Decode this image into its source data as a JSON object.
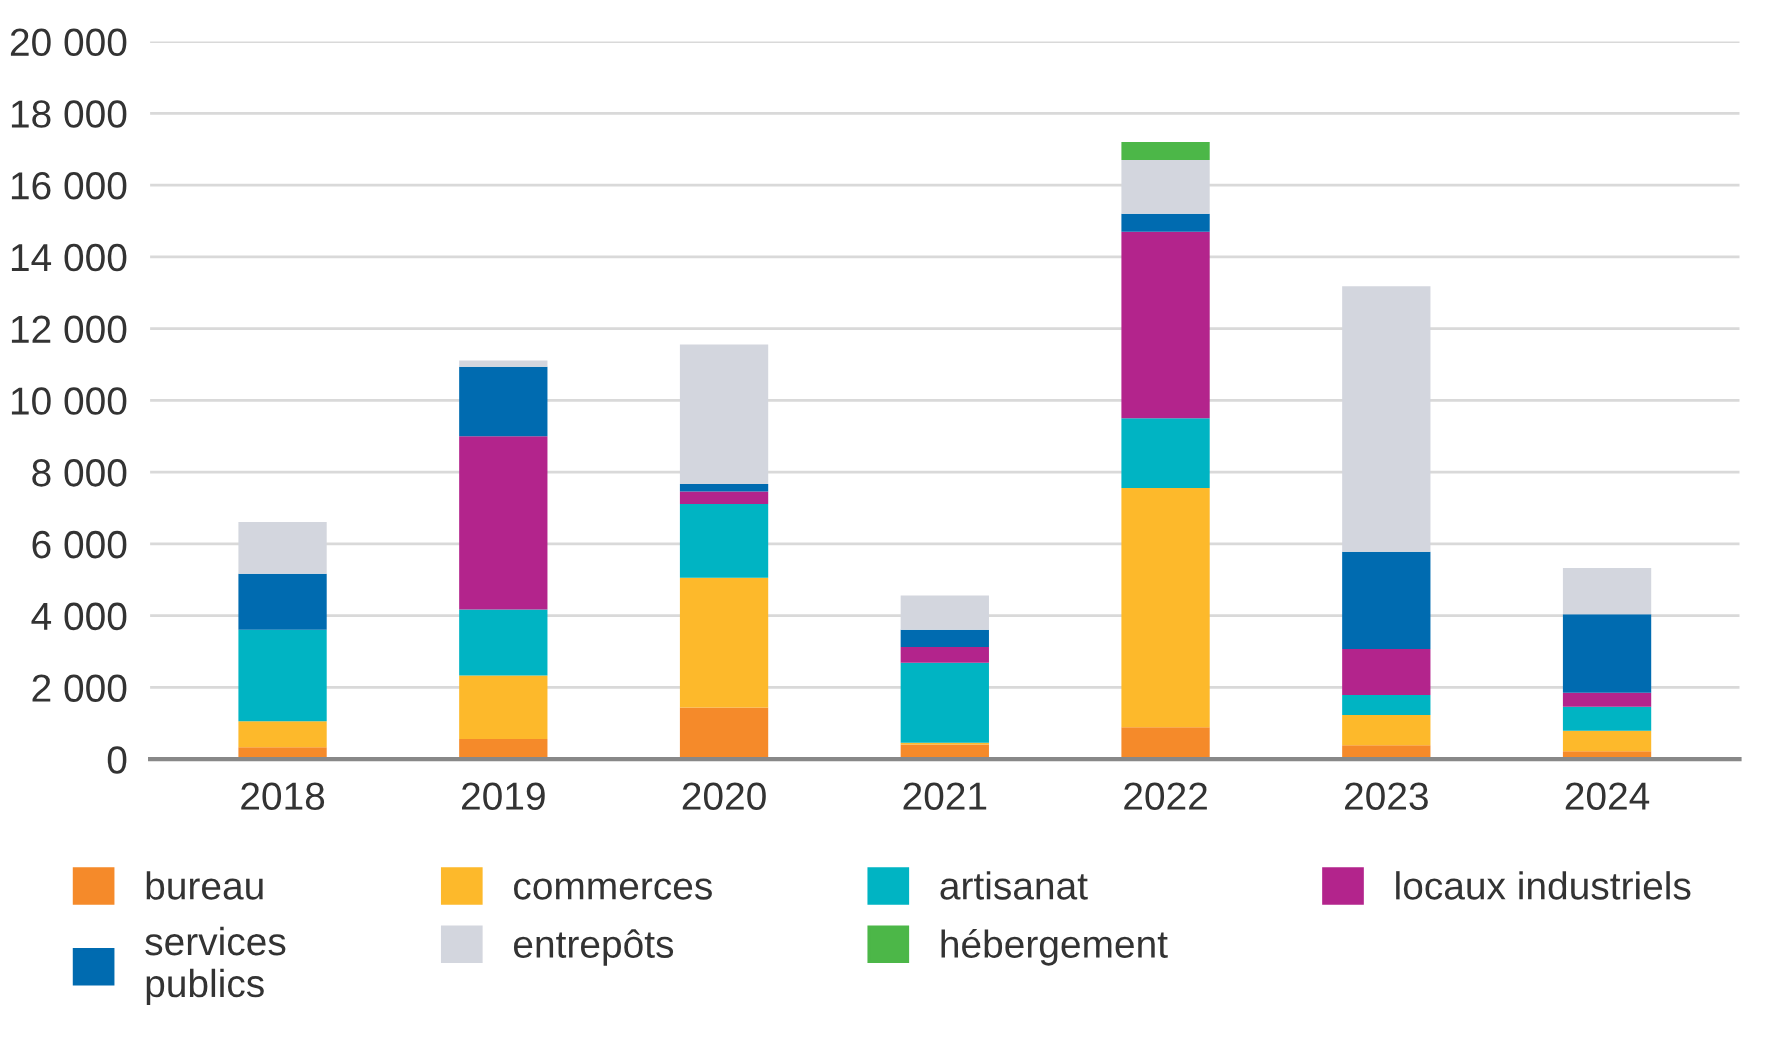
{
  "chart_data": {
    "type": "bar",
    "stacked": true,
    "categories": [
      "2018",
      "2019",
      "2020",
      "2021",
      "2022",
      "2023",
      "2024"
    ],
    "series": [
      {
        "name": "bureau",
        "color": "#f58a2a",
        "values": [
          330,
          560,
          1440,
          410,
          890,
          390,
          220
        ]
      },
      {
        "name": "commerces",
        "color": "#fdb92b",
        "values": [
          730,
          1770,
          3620,
          50,
          6670,
          840,
          570
        ]
      },
      {
        "name": "artisanat",
        "color": "#00b4c3",
        "values": [
          2550,
          1840,
          2050,
          2230,
          1940,
          560,
          670
        ]
      },
      {
        "name": "locaux industriels",
        "color": "#b3248c",
        "values": [
          0,
          4830,
          350,
          440,
          5200,
          1280,
          390
        ]
      },
      {
        "name": "services\npublics",
        "color": "#006bb0",
        "values": [
          1560,
          1940,
          210,
          480,
          500,
          2710,
          2190
        ]
      },
      {
        "name": "entrepôts",
        "color": "#d3d6de",
        "values": [
          1440,
          170,
          3890,
          950,
          1500,
          7400,
          1290
        ]
      },
      {
        "name": "hébergement",
        "color": "#4cb748",
        "values": [
          0,
          0,
          0,
          0,
          500,
          0,
          0
        ]
      }
    ],
    "ylim": [
      0,
      20000
    ],
    "yticks": [
      0,
      {
        "value": 2000,
        "label": "2 000"
      },
      {
        "value": 4000,
        "label": "4 000"
      },
      {
        "value": 6000,
        "label": "6 000"
      },
      {
        "value": 8000,
        "label": "8 000"
      },
      {
        "value": 10000,
        "label": "10 000"
      },
      {
        "value": 12000,
        "label": "12 000"
      },
      {
        "value": 14000,
        "label": "14 000"
      },
      {
        "value": 16000,
        "label": "16 000"
      },
      {
        "value": 18000,
        "label": "18 000"
      },
      {
        "value": 20000,
        "label": "20 000"
      }
    ],
    "grid": "y",
    "legend": "bottom"
  }
}
